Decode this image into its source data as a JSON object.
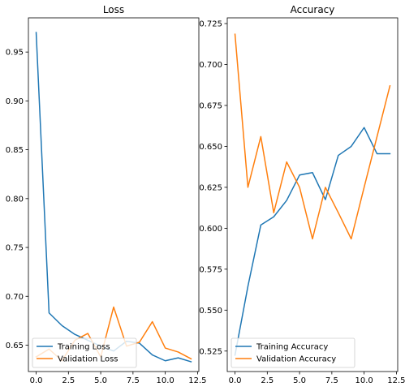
{
  "chart_data": [
    {
      "type": "line",
      "title": "Loss",
      "xlabel": "",
      "ylabel": "",
      "x": [
        0,
        1,
        2,
        3,
        4,
        5,
        6,
        7,
        8,
        9,
        10,
        11,
        12
      ],
      "xlim": [
        -0.6,
        12.6
      ],
      "ylim": [
        0.623,
        0.985
      ],
      "xticks": [
        0.0,
        2.5,
        5.0,
        7.5,
        10.0,
        12.5
      ],
      "xtick_labels": [
        "0.0",
        "2.5",
        "5.0",
        "7.5",
        "10.0",
        "12.5"
      ],
      "yticks": [
        0.65,
        0.7,
        0.75,
        0.8,
        0.85,
        0.9,
        0.95
      ],
      "ytick_labels": [
        "0.65",
        "0.70",
        "0.75",
        "0.80",
        "0.85",
        "0.90",
        "0.95"
      ],
      "grid": false,
      "legend": "lower-left",
      "series": [
        {
          "name": "Training Loss",
          "color": "#1f77b4",
          "values": [
            0.97,
            0.683,
            0.67,
            0.661,
            0.655,
            0.649,
            0.644,
            0.654,
            0.652,
            0.64,
            0.634,
            0.637,
            0.633
          ]
        },
        {
          "name": "Validation Loss",
          "color": "#ff7f0e",
          "values": [
            0.638,
            0.646,
            0.634,
            0.655,
            0.662,
            0.638,
            0.689,
            0.649,
            0.653,
            0.674,
            0.647,
            0.643,
            0.636
          ]
        }
      ]
    },
    {
      "type": "line",
      "title": "Accuracy",
      "xlabel": "",
      "ylabel": "",
      "x": [
        0,
        1,
        2,
        3,
        4,
        5,
        6,
        7,
        8,
        9,
        10,
        11,
        12
      ],
      "xlim": [
        -0.6,
        12.6
      ],
      "ylim": [
        0.5125,
        0.7285
      ],
      "xticks": [
        0.0,
        2.5,
        5.0,
        7.5,
        10.0,
        12.5
      ],
      "xtick_labels": [
        "0.0",
        "2.5",
        "5.0",
        "7.5",
        "10.0",
        "12.5"
      ],
      "yticks": [
        0.525,
        0.55,
        0.575,
        0.6,
        0.625,
        0.65,
        0.675,
        0.7,
        0.725
      ],
      "ytick_labels": [
        "0.525",
        "0.550",
        "0.575",
        "0.600",
        "0.625",
        "0.650",
        "0.675",
        "0.700",
        "0.725"
      ],
      "grid": false,
      "legend": "lower-left",
      "series": [
        {
          "name": "Training Accuracy",
          "color": "#1f77b4",
          "values": [
            0.5225,
            0.5645,
            0.602,
            0.607,
            0.617,
            0.6325,
            0.634,
            0.6175,
            0.6445,
            0.65,
            0.6615,
            0.6455,
            0.6455
          ]
        },
        {
          "name": "Validation Accuracy",
          "color": "#ff7f0e",
          "values": [
            0.7185,
            0.625,
            0.656,
            0.6095,
            0.6405,
            0.625,
            0.5935,
            0.625,
            0.6095,
            0.5935,
            0.625,
            0.656,
            0.687
          ]
        }
      ]
    }
  ]
}
